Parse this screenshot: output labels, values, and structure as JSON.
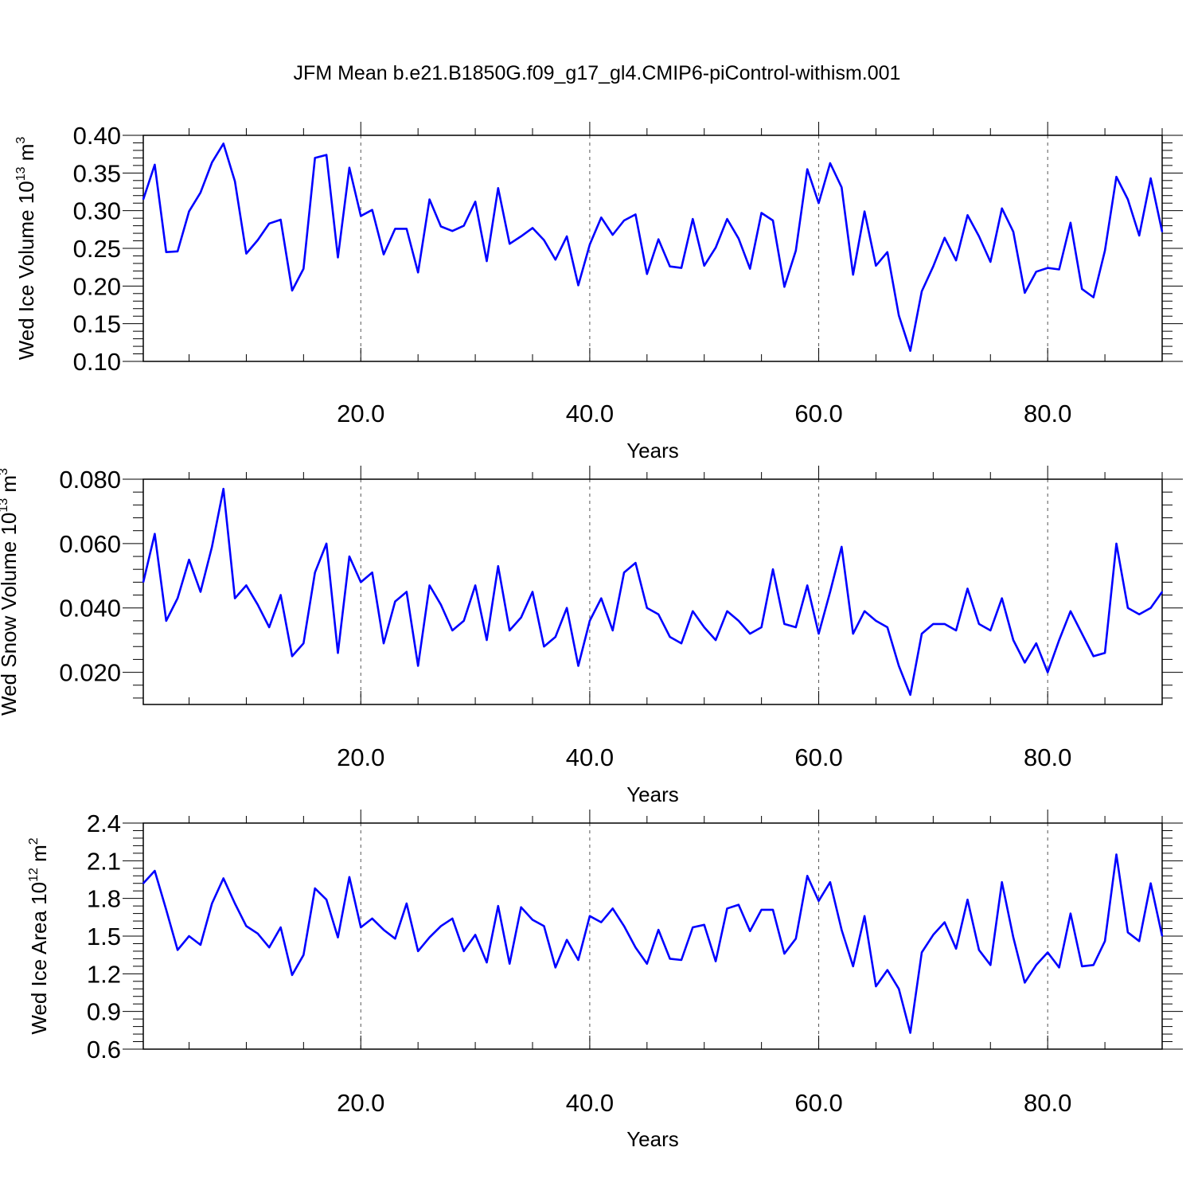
{
  "title": "JFM Mean b.e21.B1850G.f09_g17_gl4.CMIP6-piControl-withism.001",
  "colors": {
    "line": "#0000ff",
    "axis": "#000000",
    "grid": "#555555"
  },
  "chart_data": [
    {
      "type": "line",
      "xlabel": "Years",
      "ylabel": {
        "text": "Wed Ice Volume 10",
        "exponent": "13",
        "unit": " m",
        "unit_exponent": "3"
      },
      "xlim": [
        1,
        90
      ],
      "ylim": [
        0.1,
        0.4
      ],
      "xticks": [
        20,
        40,
        60,
        80
      ],
      "xtick_labels": [
        "20.0",
        "40.0",
        "60.0",
        "80.0"
      ],
      "yticks": [
        0.1,
        0.15,
        0.2,
        0.25,
        0.3,
        0.35,
        0.4
      ],
      "ytick_labels": [
        "0.10",
        "0.15",
        "0.20",
        "0.25",
        "0.30",
        "0.35",
        "0.40"
      ],
      "grid": "vertical dashed at x ticks",
      "series": [
        {
          "values": [
            0.315,
            0.361,
            0.245,
            0.246,
            0.299,
            0.324,
            0.364,
            0.389,
            0.339,
            0.243,
            0.261,
            0.283,
            0.288,
            0.194,
            0.223,
            0.37,
            0.374,
            0.238,
            0.357,
            0.293,
            0.301,
            0.242,
            0.276,
            0.276,
            0.218,
            0.315,
            0.279,
            0.273,
            0.28,
            0.312,
            0.233,
            0.33,
            0.256,
            0.266,
            0.277,
            0.261,
            0.235,
            0.266,
            0.201,
            0.255,
            0.291,
            0.268,
            0.287,
            0.295,
            0.216,
            0.262,
            0.226,
            0.224,
            0.289,
            0.227,
            0.251,
            0.289,
            0.263,
            0.223,
            0.297,
            0.287,
            0.199,
            0.247,
            0.355,
            0.31,
            0.363,
            0.331,
            0.215,
            0.299,
            0.227,
            0.245,
            0.161,
            0.114,
            0.193,
            0.226,
            0.264,
            0.234,
            0.294,
            0.266,
            0.232,
            0.303,
            0.272,
            0.191,
            0.219,
            0.224,
            0.222,
            0.284,
            0.196,
            0.185,
            0.247,
            0.345,
            0.315,
            0.267,
            0.343,
            0.272
          ]
        }
      ]
    },
    {
      "type": "line",
      "xlabel": "Years",
      "ylabel": {
        "text": "Wed Snow Volume 10",
        "exponent": "13",
        "unit": " m",
        "unit_exponent": "3"
      },
      "xlim": [
        1,
        90
      ],
      "ylim": [
        0.01,
        0.08
      ],
      "xticks": [
        20,
        40,
        60,
        80
      ],
      "xtick_labels": [
        "20.0",
        "40.0",
        "60.0",
        "80.0"
      ],
      "yticks": [
        0.02,
        0.04,
        0.06,
        0.08
      ],
      "ytick_labels": [
        "0.020",
        "0.040",
        "0.060",
        "0.080"
      ],
      "grid": "vertical dashed at x ticks",
      "series": [
        {
          "values": [
            0.048,
            0.063,
            0.036,
            0.043,
            0.055,
            0.045,
            0.059,
            0.077,
            0.043,
            0.047,
            0.041,
            0.034,
            0.044,
            0.025,
            0.029,
            0.051,
            0.06,
            0.026,
            0.056,
            0.048,
            0.051,
            0.029,
            0.042,
            0.045,
            0.022,
            0.047,
            0.041,
            0.033,
            0.036,
            0.047,
            0.03,
            0.053,
            0.033,
            0.037,
            0.045,
            0.028,
            0.031,
            0.04,
            0.022,
            0.036,
            0.043,
            0.033,
            0.051,
            0.054,
            0.04,
            0.038,
            0.031,
            0.029,
            0.039,
            0.034,
            0.03,
            0.039,
            0.036,
            0.032,
            0.034,
            0.052,
            0.035,
            0.034,
            0.047,
            0.032,
            0.045,
            0.059,
            0.032,
            0.039,
            0.036,
            0.034,
            0.022,
            0.013,
            0.032,
            0.035,
            0.035,
            0.033,
            0.046,
            0.035,
            0.033,
            0.043,
            0.03,
            0.023,
            0.029,
            0.02,
            0.03,
            0.039,
            0.032,
            0.025,
            0.026,
            0.06,
            0.04,
            0.038,
            0.04,
            0.045
          ]
        }
      ]
    },
    {
      "type": "line",
      "xlabel": "Years",
      "ylabel": {
        "text": "Wed Ice Area 10",
        "exponent": "12",
        "unit": " m",
        "unit_exponent": "2"
      },
      "xlim": [
        1,
        90
      ],
      "ylim": [
        0.6,
        2.4
      ],
      "xticks": [
        20,
        40,
        60,
        80
      ],
      "xtick_labels": [
        "20.0",
        "40.0",
        "60.0",
        "80.0"
      ],
      "yticks": [
        0.6,
        0.9,
        1.2,
        1.5,
        1.8,
        2.1,
        2.4
      ],
      "ytick_labels": [
        "0.6",
        "0.9",
        "1.2",
        "1.5",
        "1.8",
        "2.1",
        "2.4"
      ],
      "grid": "vertical dashed at x ticks",
      "series": [
        {
          "values": [
            1.92,
            2.02,
            1.71,
            1.39,
            1.5,
            1.43,
            1.76,
            1.96,
            1.76,
            1.58,
            1.52,
            1.41,
            1.57,
            1.19,
            1.35,
            1.88,
            1.79,
            1.49,
            1.97,
            1.57,
            1.64,
            1.55,
            1.48,
            1.76,
            1.38,
            1.49,
            1.58,
            1.64,
            1.38,
            1.51,
            1.29,
            1.74,
            1.28,
            1.73,
            1.63,
            1.58,
            1.25,
            1.47,
            1.31,
            1.66,
            1.61,
            1.72,
            1.58,
            1.41,
            1.28,
            1.55,
            1.32,
            1.31,
            1.57,
            1.59,
            1.3,
            1.72,
            1.75,
            1.54,
            1.71,
            1.71,
            1.36,
            1.48,
            1.98,
            1.78,
            1.93,
            1.55,
            1.26,
            1.66,
            1.1,
            1.23,
            1.08,
            0.73,
            1.37,
            1.51,
            1.61,
            1.4,
            1.79,
            1.39,
            1.27,
            1.93,
            1.49,
            1.13,
            1.27,
            1.37,
            1.25,
            1.68,
            1.26,
            1.27,
            1.46,
            2.15,
            1.53,
            1.46,
            1.92,
            1.5
          ]
        }
      ]
    }
  ]
}
